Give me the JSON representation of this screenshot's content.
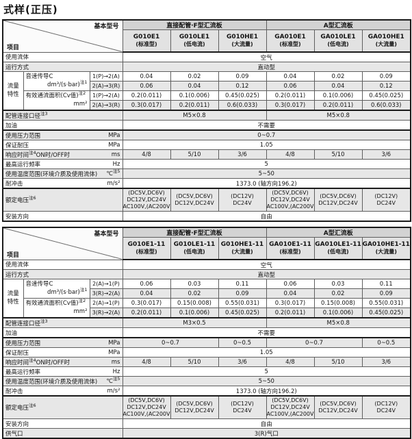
{
  "page_title": "式样(正压)",
  "corner": {
    "top_right": "基本型号",
    "bottom_left": "项目"
  },
  "tables": [
    {
      "groups": [
        {
          "label": "直接配管·F型汇流板",
          "span": 3
        },
        {
          "label": "A型汇流板",
          "span": 3
        }
      ],
      "models": [
        {
          "code": "G010E1",
          "type": "(标准型)"
        },
        {
          "code": "G010LE1",
          "type": "(低电流)"
        },
        {
          "code": "G010HE1",
          "type": "(大流量)"
        },
        {
          "code": "GA010E1",
          "type": "(标准型)"
        },
        {
          "code": "GA010LE1",
          "type": "(低电流)"
        },
        {
          "code": "GA010HE1",
          "type": "(大流量)"
        }
      ],
      "rows": [
        {
          "cells": [
            {
              "k": "label",
              "t": "使用流体",
              "span": 3
            },
            {
              "k": "d",
              "t": "空气",
              "span": 6
            }
          ]
        },
        {
          "shaded": true,
          "cells": [
            {
              "k": "label",
              "t": "运行方式",
              "span": 3
            },
            {
              "k": "d",
              "t": "直动型",
              "span": 6
            }
          ]
        },
        {
          "cells": [
            {
              "k": "grp",
              "lines": [
                "流量",
                "特性"
              ],
              "rspan": 4
            },
            {
              "k": "big",
              "l1": "音速传导C",
              "l2": "dm³/(s·bar)",
              "s2": "注1",
              "rspan": 2
            },
            {
              "k": "dir",
              "t": "1(P)→2(A)"
            },
            {
              "k": "d",
              "t": "0.04"
            },
            {
              "k": "d",
              "t": "0.02"
            },
            {
              "k": "d",
              "t": "0.09"
            },
            {
              "k": "d",
              "t": "0.04"
            },
            {
              "k": "d",
              "t": "0.02"
            },
            {
              "k": "d",
              "t": "0.09"
            }
          ]
        },
        {
          "shaded": true,
          "cells": [
            {
              "k": "dir",
              "t": "2(A)→3(R)"
            },
            {
              "k": "d",
              "t": "0.06"
            },
            {
              "k": "d",
              "t": "0.04"
            },
            {
              "k": "d",
              "t": "0.12"
            },
            {
              "k": "d",
              "t": "0.06"
            },
            {
              "k": "d",
              "t": "0.04"
            },
            {
              "k": "d",
              "t": "0.12"
            }
          ]
        },
        {
          "cells": [
            {
              "k": "big",
              "l1": "有效通流面积(Cv值)",
              "s1": "注2",
              "l2": "mm²",
              "rspan": 2
            },
            {
              "k": "dir",
              "t": "1(P)→2(A)"
            },
            {
              "k": "d",
              "t": "0.2(0.011)"
            },
            {
              "k": "d",
              "t": "0.1(0.006)"
            },
            {
              "k": "d",
              "t": "0.45(0.025)"
            },
            {
              "k": "d",
              "t": "0.2(0.011)"
            },
            {
              "k": "d",
              "t": "0.1(0.006)"
            },
            {
              "k": "d",
              "t": "0.45(0.025)"
            }
          ]
        },
        {
          "shaded": true,
          "cells": [
            {
              "k": "dir",
              "t": "2(A)→3(R)"
            },
            {
              "k": "d",
              "t": "0.3(0.017)"
            },
            {
              "k": "d",
              "t": "0.2(0.011)"
            },
            {
              "k": "d",
              "t": "0.6(0.033)"
            },
            {
              "k": "d",
              "t": "0.3(0.017)"
            },
            {
              "k": "d",
              "t": "0.2(0.011)"
            },
            {
              "k": "d",
              "t": "0.6(0.033)"
            }
          ]
        },
        {
          "shaded": true,
          "thick": true,
          "cells": [
            {
              "k": "label",
              "t": "配管连接口径",
              "sup": "注3",
              "span": 3
            },
            {
              "k": "d",
              "t": "M5×0.8",
              "span": 3
            },
            {
              "k": "d",
              "t": "M5×0.8",
              "span": 3
            }
          ]
        },
        {
          "cells": [
            {
              "k": "label",
              "t": "加油",
              "span": 3
            },
            {
              "k": "d",
              "t": "不需要",
              "span": 6
            }
          ]
        },
        {
          "shaded": true,
          "thick": true,
          "cells": [
            {
              "k": "label",
              "t": "使用压力范围",
              "unit": "MPa",
              "span": 3
            },
            {
              "k": "d",
              "t": "0~0.7",
              "span": 6
            }
          ]
        },
        {
          "cells": [
            {
              "k": "label",
              "t": "保证耐压",
              "unit": "MPa",
              "span": 3
            },
            {
              "k": "d",
              "t": "1.05",
              "span": 6
            }
          ]
        },
        {
          "shaded": true,
          "cells": [
            {
              "k": "label",
              "t": "响应时间",
              "sup": "注4",
              "suffix": "ON时/OFF时",
              "unit": "ms",
              "span": 3
            },
            {
              "k": "d",
              "t": "4/8"
            },
            {
              "k": "d",
              "t": "5/10"
            },
            {
              "k": "d",
              "t": "3/6"
            },
            {
              "k": "d",
              "t": "4/8"
            },
            {
              "k": "d",
              "t": "5/10"
            },
            {
              "k": "d",
              "t": "3/6"
            }
          ]
        },
        {
          "cells": [
            {
              "k": "label",
              "t": "最高运行频率",
              "unit": "Hz",
              "span": 3
            },
            {
              "k": "d",
              "t": "5",
              "span": 6
            }
          ]
        },
        {
          "shaded": true,
          "cells": [
            {
              "k": "label",
              "t": "使用温度范围(环境介质及使用流体)",
              "unit": "℃",
              "unitSup": "注5",
              "span": 3
            },
            {
              "k": "d",
              "t": "5~50",
              "span": 6
            }
          ]
        },
        {
          "cells": [
            {
              "k": "label",
              "t": "耐冲击",
              "unit": "m/s²",
              "span": 3
            },
            {
              "k": "d",
              "t": "1373.0 (轴方向196.2)",
              "span": 6
            }
          ]
        },
        {
          "shaded": true,
          "thick": true,
          "cells": [
            {
              "k": "label",
              "t": "额定电压",
              "sup": "注6",
              "span": 3
            },
            {
              "k": "d",
              "lines": [
                "(DC5V,DC6V)",
                "DC12V,DC24V",
                "AC100V,(AC200V)"
              ]
            },
            {
              "k": "d",
              "lines": [
                "(DC5V,DC6V)",
                "DC12V,DC24V"
              ]
            },
            {
              "k": "d",
              "lines": [
                "(DC12V)",
                "DC24V"
              ]
            },
            {
              "k": "d",
              "lines": [
                "(DC5V,DC6V)",
                "DC12V,DC24V",
                "AC100V,(AC200V)"
              ]
            },
            {
              "k": "d",
              "lines": [
                "(DC5V,DC6V)",
                "DC12V,DC24V"
              ]
            },
            {
              "k": "d",
              "lines": [
                "(DC12V)",
                "DC24V"
              ]
            }
          ]
        },
        {
          "cells": [
            {
              "k": "label",
              "t": "安装方向",
              "span": 3
            },
            {
              "k": "d",
              "t": "自由",
              "span": 6
            }
          ]
        }
      ]
    },
    {
      "groups": [
        {
          "label": "直接配管·F型汇流板",
          "span": 3
        },
        {
          "label": "A型汇流板",
          "span": 3
        }
      ],
      "models": [
        {
          "code": "G010E1-11",
          "type": "(标准型)"
        },
        {
          "code": "G010LE1-11",
          "type": "(低电流)"
        },
        {
          "code": "G010HE1-11",
          "type": "(大流量)"
        },
        {
          "code": "GA010E1-11",
          "type": "(标准型)"
        },
        {
          "code": "GA010LE1-11",
          "type": "(低电流)"
        },
        {
          "code": "GA010HE1-11",
          "type": "(大流量)"
        }
      ],
      "rows": [
        {
          "cells": [
            {
              "k": "label",
              "t": "使用流体",
              "span": 3
            },
            {
              "k": "d",
              "t": "空气",
              "span": 6
            }
          ]
        },
        {
          "shaded": true,
          "cells": [
            {
              "k": "label",
              "t": "运行方式",
              "span": 3
            },
            {
              "k": "d",
              "t": "直动型",
              "span": 6
            }
          ]
        },
        {
          "cells": [
            {
              "k": "grp",
              "lines": [
                "流量",
                "特性"
              ],
              "rspan": 4
            },
            {
              "k": "big",
              "l1": "音速传导C",
              "l2": "dm³/(s·bar)",
              "s2": "注1",
              "rspan": 2
            },
            {
              "k": "dir",
              "t": "2(A)→1(P)"
            },
            {
              "k": "d",
              "t": "0.06"
            },
            {
              "k": "d",
              "t": "0.03"
            },
            {
              "k": "d",
              "t": "0.11"
            },
            {
              "k": "d",
              "t": "0.06"
            },
            {
              "k": "d",
              "t": "0.03"
            },
            {
              "k": "d",
              "t": "0.11"
            }
          ]
        },
        {
          "shaded": true,
          "cells": [
            {
              "k": "dir",
              "t": "3(R)→2(A)"
            },
            {
              "k": "d",
              "t": "0.04"
            },
            {
              "k": "d",
              "t": "0.02"
            },
            {
              "k": "d",
              "t": "0.09"
            },
            {
              "k": "d",
              "t": "0.04"
            },
            {
              "k": "d",
              "t": "0.02"
            },
            {
              "k": "d",
              "t": "0.09"
            }
          ]
        },
        {
          "cells": [
            {
              "k": "big",
              "l1": "有效通流面积(Cv值)",
              "s1": "注2",
              "l2": "mm²",
              "rspan": 2
            },
            {
              "k": "dir",
              "t": "2(A)→1(P)"
            },
            {
              "k": "d",
              "t": "0.3(0.017)"
            },
            {
              "k": "d",
              "t": "0.15(0.008)"
            },
            {
              "k": "d",
              "t": "0.55(0.031)"
            },
            {
              "k": "d",
              "t": "0.3(0.017)"
            },
            {
              "k": "d",
              "t": "0.15(0.008)"
            },
            {
              "k": "d",
              "t": "0.55(0.031)"
            }
          ]
        },
        {
          "shaded": true,
          "cells": [
            {
              "k": "dir",
              "t": "3(R)→2(A)"
            },
            {
              "k": "d",
              "t": "0.2(0.011)"
            },
            {
              "k": "d",
              "t": "0.1(0.006)"
            },
            {
              "k": "d",
              "t": "0.45(0.025)"
            },
            {
              "k": "d",
              "t": "0.2(0.011)"
            },
            {
              "k": "d",
              "t": "0.1(0.006)"
            },
            {
              "k": "d",
              "t": "0.45(0.025)"
            }
          ]
        },
        {
          "shaded": true,
          "thick": true,
          "cells": [
            {
              "k": "label",
              "t": "配管连接口径",
              "sup": "注3",
              "span": 3
            },
            {
              "k": "d",
              "t": "M3×0.5",
              "span": 3
            },
            {
              "k": "d",
              "t": "M5×0.8",
              "span": 3
            }
          ]
        },
        {
          "cells": [
            {
              "k": "label",
              "t": "加油",
              "span": 3
            },
            {
              "k": "d",
              "t": "不需要",
              "span": 6
            }
          ]
        },
        {
          "shaded": true,
          "thick": true,
          "cells": [
            {
              "k": "label",
              "t": "使用压力范围",
              "unit": "MPa",
              "span": 3
            },
            {
              "k": "d",
              "t": "0~0.7",
              "span": 2
            },
            {
              "k": "d",
              "t": "0~0.5"
            },
            {
              "k": "d",
              "t": "0~0.7",
              "span": 2
            },
            {
              "k": "d",
              "t": "0~0.5"
            }
          ]
        },
        {
          "cells": [
            {
              "k": "label",
              "t": "保证耐压",
              "unit": "MPa",
              "span": 3
            },
            {
              "k": "d",
              "t": "1.05",
              "span": 6
            }
          ]
        },
        {
          "shaded": true,
          "cells": [
            {
              "k": "label",
              "t": "响应时间",
              "sup": "注4",
              "suffix": "ON时/OFF时",
              "unit": "ms",
              "span": 3
            },
            {
              "k": "d",
              "t": "4/8"
            },
            {
              "k": "d",
              "t": "5/10"
            },
            {
              "k": "d",
              "t": "3/6"
            },
            {
              "k": "d",
              "t": "4/8"
            },
            {
              "k": "d",
              "t": "5/10"
            },
            {
              "k": "d",
              "t": "3/6"
            }
          ]
        },
        {
          "cells": [
            {
              "k": "label",
              "t": "最高运行频率",
              "unit": "Hz",
              "span": 3
            },
            {
              "k": "d",
              "t": "5",
              "span": 6
            }
          ]
        },
        {
          "shaded": true,
          "cells": [
            {
              "k": "label",
              "t": "使用温度范围(环境介质及使用流体)",
              "unit": "℃",
              "unitSup": "注5",
              "span": 3
            },
            {
              "k": "d",
              "t": "5~50",
              "span": 6
            }
          ]
        },
        {
          "cells": [
            {
              "k": "label",
              "t": "耐冲击",
              "unit": "m/s²",
              "span": 3
            },
            {
              "k": "d",
              "t": "1373.0 (轴方向196.2)",
              "span": 6
            }
          ]
        },
        {
          "shaded": true,
          "thick": true,
          "cells": [
            {
              "k": "label",
              "t": "额定电压",
              "sup": "注6",
              "span": 3
            },
            {
              "k": "d",
              "lines": [
                "(DC5V,DC6V)",
                "DC12V,DC24V",
                "AC100V,(AC200V)"
              ]
            },
            {
              "k": "d",
              "lines": [
                "(DC5V,DC6V)",
                "DC12V,DC24V"
              ]
            },
            {
              "k": "d",
              "lines": [
                "(DC12V)",
                "DC24V"
              ]
            },
            {
              "k": "d",
              "lines": [
                "(DC5V,DC6V)",
                "DC12V,DC24V",
                "AC100V,(AC200V)"
              ]
            },
            {
              "k": "d",
              "lines": [
                "(DC5V,DC6V)",
                "DC12V,DC24V"
              ]
            },
            {
              "k": "d",
              "lines": [
                "(DC12V)",
                "DC24V"
              ]
            }
          ]
        },
        {
          "cells": [
            {
              "k": "label",
              "t": "安装方向",
              "span": 3
            },
            {
              "k": "d",
              "t": "自由",
              "span": 6
            }
          ]
        },
        {
          "shaded": true,
          "cells": [
            {
              "k": "label",
              "t": "供气口",
              "span": 3
            },
            {
              "k": "d",
              "t": "3(R)气口",
              "span": 6
            }
          ]
        }
      ]
    }
  ]
}
